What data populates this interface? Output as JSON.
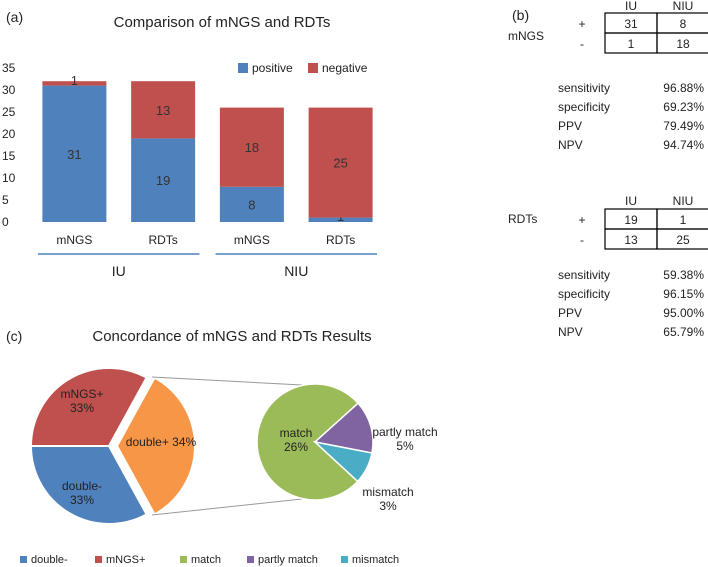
{
  "colors": {
    "positive": "#4f81bd",
    "negative": "#c0504d",
    "double_neg": "#4f81bd",
    "mngs_pos": "#c0504d",
    "double_pos": "#f79646",
    "match": "#9bbb59",
    "partly_match": "#8064a2",
    "mismatch": "#4bacc6",
    "group_line": "#4f81bd"
  },
  "chart_data": [
    {
      "panel": "(a)",
      "type": "bar",
      "stacked": true,
      "title": "Comparison of mNGS and RDTs",
      "categories": [
        "mNGS",
        "RDTs",
        "mNGS",
        "RDTs"
      ],
      "groups": [
        {
          "label": "IU",
          "categories": [
            0,
            1
          ]
        },
        {
          "label": "NIU",
          "categories": [
            2,
            3
          ]
        }
      ],
      "series": [
        {
          "name": "positive",
          "values": [
            31,
            19,
            8,
            1
          ],
          "labels": [
            "31",
            "19",
            "8",
            "1"
          ]
        },
        {
          "name": "negative",
          "values": [
            1,
            13,
            18,
            25
          ],
          "labels": [
            "1",
            "13",
            "18",
            "25"
          ]
        }
      ],
      "ylim": [
        0,
        35
      ],
      "yticks": [
        "0",
        "5",
        "10",
        "15",
        "20",
        "25",
        "30",
        "35"
      ],
      "legend": "top-right"
    },
    {
      "panel": "(c)",
      "type": "pie",
      "title": "Concordance of mNGS and RDTs Results",
      "slices": [
        {
          "name": "double-",
          "value": 33,
          "label": [
            "double-",
            "33%"
          ]
        },
        {
          "name": "mNGS+",
          "value": 33,
          "label": [
            "mNGS+",
            "33%"
          ]
        },
        {
          "name": "double+",
          "value": 34,
          "label": [
            "double+ 34%"
          ]
        }
      ],
      "breakout": {
        "of": "double+",
        "slices": [
          {
            "name": "match",
            "value": 26,
            "label": [
              "match",
              "26%"
            ]
          },
          {
            "name": "partly match",
            "value": 5,
            "label": [
              "partly match",
              "5%"
            ]
          },
          {
            "name": "mismatch",
            "value": 3,
            "label": [
              "mismatch",
              "3%"
            ]
          }
        ]
      },
      "legend_items": [
        "double-",
        "mNGS+",
        "match",
        "partly match",
        "mismatch"
      ],
      "legend": "bottom"
    },
    {
      "panel": "(b)",
      "type": "table",
      "tables": [
        {
          "row_label": "mNGS",
          "col_headers": [
            "IU",
            "NIU"
          ],
          "rows": [
            {
              "sign": "+",
              "cells": [
                "31",
                "8"
              ]
            },
            {
              "sign": "-",
              "cells": [
                "1",
                "18"
              ]
            }
          ],
          "metrics": [
            {
              "name": "sensitivity",
              "value": "96.88%"
            },
            {
              "name": "specificity",
              "value": "69.23%"
            },
            {
              "name": "PPV",
              "value": "79.49%"
            },
            {
              "name": "NPV",
              "value": "94.74%"
            }
          ]
        },
        {
          "row_label": "RDTs",
          "col_headers": [
            "IU",
            "NIU"
          ],
          "rows": [
            {
              "sign": "+",
              "cells": [
                "19",
                "1"
              ]
            },
            {
              "sign": "-",
              "cells": [
                "13",
                "25"
              ]
            }
          ],
          "metrics": [
            {
              "name": "sensitivity",
              "value": "59.38%"
            },
            {
              "name": "specificity",
              "value": "96.15%"
            },
            {
              "name": "PPV",
              "value": "95.00%"
            },
            {
              "name": "NPV",
              "value": "65.79%"
            }
          ]
        }
      ]
    }
  ]
}
